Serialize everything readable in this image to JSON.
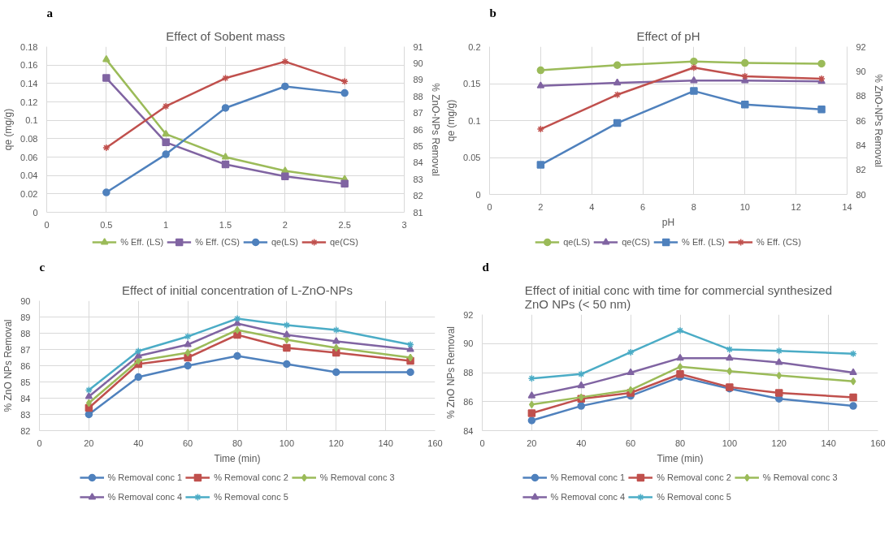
{
  "chart_data": [
    {
      "type": "line",
      "title": "Effect of Sobent mass",
      "annotations": [
        "a"
      ],
      "ylabel": "qe (mg/g)",
      "y2label": "% ZnO-NPs Removal",
      "xlim": [
        0,
        3
      ],
      "xticks": [
        0,
        0.5,
        1,
        1.5,
        2,
        2.5,
        3
      ],
      "ylim": [
        0,
        0.18
      ],
      "yticks": [
        0,
        0.02,
        0.04,
        0.06,
        0.08,
        0.1,
        0.12,
        0.14,
        0.16,
        0.18
      ],
      "y2lim": [
        81,
        91
      ],
      "y2ticks": [
        81,
        82,
        83,
        84,
        85,
        86,
        87,
        88,
        89,
        90,
        91
      ],
      "grid": true,
      "legend": "bottom",
      "line_style": "solid",
      "x": [
        0.5,
        1,
        1.5,
        2,
        2.5
      ],
      "series": [
        {
          "name": "% Eff. (LS)",
          "color": "#9bbb59",
          "marker": "triangle",
          "values": [
            0.166,
            0.085,
            0.06,
            0.045,
            0.036
          ]
        },
        {
          "name": "% Eff. (CS)",
          "color": "#8064a2",
          "marker": "square",
          "values": [
            0.146,
            0.076,
            0.052,
            0.039,
            0.031
          ]
        },
        {
          "name": "qe(LS)",
          "color": "#4f81bd",
          "marker": "circle",
          "axis": "y2",
          "values": [
            82.2,
            84.5,
            87.3,
            88.6,
            88.2
          ]
        },
        {
          "name": "qe(CS)",
          "color": "#c0504d",
          "marker": "cross",
          "axis": "y2",
          "values": [
            84.9,
            87.4,
            89.1,
            90.1,
            88.9
          ]
        }
      ]
    },
    {
      "type": "line",
      "title": "Effect of pH",
      "annotations": [
        "b"
      ],
      "xlabel": "pH",
      "ylabel": "qe (mg/g)",
      "y2label": "% ZnO-NPs Removal",
      "xlim": [
        0,
        14
      ],
      "xticks": [
        0,
        2,
        4,
        6,
        8,
        10,
        12,
        14
      ],
      "ylim": [
        0,
        0.2
      ],
      "yticks": [
        0,
        0.05,
        0.1,
        0.15,
        0.2
      ],
      "y2lim": [
        80,
        92
      ],
      "y2ticks": [
        80,
        82,
        84,
        86,
        88,
        90,
        92
      ],
      "grid": true,
      "legend": "bottom",
      "line_style": "solid",
      "x": [
        2,
        5,
        8,
        10,
        13
      ],
      "series": [
        {
          "name": "qe(LS)",
          "color": "#9bbb59",
          "marker": "circle",
          "values": [
            0.168,
            0.175,
            0.18,
            0.178,
            0.177
          ]
        },
        {
          "name": "qe(CS)",
          "color": "#8064a2",
          "marker": "triangle",
          "values": [
            0.147,
            0.151,
            0.154,
            0.154,
            0.153
          ]
        },
        {
          "name": "% Eff. (LS)",
          "color": "#4f81bd",
          "marker": "square",
          "axis": "y2",
          "values": [
            82.4,
            85.8,
            88.4,
            87.3,
            86.9
          ]
        },
        {
          "name": "% Eff. (CS)",
          "color": "#c0504d",
          "marker": "cross",
          "axis": "y2",
          "values": [
            85.3,
            88.1,
            90.3,
            89.6,
            89.4
          ]
        }
      ]
    },
    {
      "type": "line",
      "title": "Effect of initial concentration of L-ZnO-NPs",
      "annotations": [
        "c"
      ],
      "xlabel": "Time (min)",
      "ylabel": "% ZnO NPs Removal",
      "xlim": [
        0,
        160
      ],
      "xticks": [
        0,
        20,
        40,
        60,
        80,
        100,
        120,
        140,
        160
      ],
      "ylim": [
        82,
        90
      ],
      "yticks": [
        82,
        83,
        84,
        85,
        86,
        87,
        88,
        89,
        90
      ],
      "grid": true,
      "legend": "bottom",
      "line_style": "solid",
      "x": [
        20,
        40,
        60,
        80,
        100,
        120,
        150
      ],
      "series": [
        {
          "name": "% Removal conc 1",
          "color": "#4f81bd",
          "marker": "circle",
          "values": [
            83.0,
            85.3,
            86.0,
            86.6,
            86.1,
            85.6,
            85.6
          ]
        },
        {
          "name": "% Removal conc 2",
          "color": "#c0504d",
          "marker": "square",
          "values": [
            83.4,
            86.1,
            86.5,
            87.9,
            87.1,
            86.8,
            86.3
          ]
        },
        {
          "name": "% Removal conc 3",
          "color": "#9bbb59",
          "marker": "diamond",
          "values": [
            83.7,
            86.3,
            86.8,
            88.2,
            87.6,
            87.1,
            86.5
          ]
        },
        {
          "name": "% Removal conc 4",
          "color": "#8064a2",
          "marker": "triangle",
          "values": [
            84.1,
            86.6,
            87.3,
            88.6,
            87.9,
            87.5,
            87.0
          ]
        },
        {
          "name": "% Removal conc 5",
          "color": "#4bacc6",
          "marker": "cross",
          "values": [
            84.5,
            86.9,
            87.8,
            88.9,
            88.5,
            88.2,
            87.3
          ]
        }
      ]
    },
    {
      "type": "line",
      "title": "Effect of initial conc  with time for commercial synthesized ZnO NPs (< 50 nm)",
      "annotations": [
        "d"
      ],
      "xlabel": "Time (min)",
      "ylabel": "% ZnO NPs Removal",
      "xlim": [
        0,
        160
      ],
      "xticks": [
        0,
        20,
        40,
        60,
        80,
        100,
        120,
        140,
        160
      ],
      "ylim": [
        84,
        92
      ],
      "yticks": [
        84,
        86,
        88,
        90,
        92
      ],
      "grid": true,
      "legend": "bottom",
      "line_style": "solid",
      "x": [
        20,
        40,
        60,
        80,
        100,
        120,
        150
      ],
      "series": [
        {
          "name": "% Removal conc 1",
          "color": "#4f81bd",
          "marker": "circle",
          "values": [
            84.7,
            85.7,
            86.4,
            87.7,
            86.9,
            86.2,
            85.7
          ]
        },
        {
          "name": "% Removal conc 2",
          "color": "#c0504d",
          "marker": "square",
          "values": [
            85.2,
            86.2,
            86.6,
            87.9,
            87.0,
            86.6,
            86.3
          ]
        },
        {
          "name": "% Removal conc 3",
          "color": "#9bbb59",
          "marker": "diamond",
          "values": [
            85.8,
            86.3,
            86.8,
            88.4,
            88.1,
            87.8,
            87.4
          ]
        },
        {
          "name": "% Removal conc 4",
          "color": "#8064a2",
          "marker": "triangle",
          "values": [
            86.4,
            87.1,
            88.0,
            89.0,
            89.0,
            88.7,
            88.0
          ]
        },
        {
          "name": "% Removal conc 5",
          "color": "#4bacc6",
          "marker": "cross",
          "values": [
            87.6,
            87.9,
            89.4,
            90.9,
            89.6,
            89.5,
            89.3
          ]
        }
      ]
    }
  ]
}
